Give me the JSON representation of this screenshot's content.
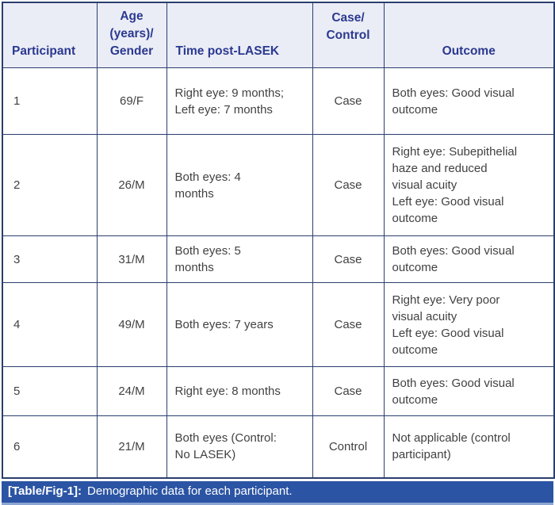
{
  "table": {
    "headers": {
      "participant": "Participant",
      "age_gender": "Age\n(years)/\nGender",
      "time_post_lasek": "Time post-LASEK",
      "case_control": "Case/\nControl",
      "outcome": "Outcome"
    },
    "rows": [
      {
        "participant": "1",
        "age_gender": "69/F",
        "time_post_lasek": "Right eye: 9 months;\nLeft eye: 7 months",
        "case_control": "Case",
        "outcome": "Both eyes: Good visual\noutcome"
      },
      {
        "participant": "2",
        "age_gender": "26/M",
        "time_post_lasek": "Both eyes: 4\nmonths",
        "case_control": "Case",
        "outcome": "Right eye: Subepithelial\nhaze and reduced\nvisual acuity\nLeft eye: Good visual\noutcome"
      },
      {
        "participant": "3",
        "age_gender": "31/M",
        "time_post_lasek": "Both eyes: 5\nmonths",
        "case_control": "Case",
        "outcome": "Both eyes: Good visual\noutcome"
      },
      {
        "participant": "4",
        "age_gender": "49/M",
        "time_post_lasek": "Both eyes: 7 years",
        "case_control": "Case",
        "outcome": "Right eye: Very poor\nvisual acuity\nLeft eye: Good visual\noutcome"
      },
      {
        "participant": "5",
        "age_gender": "24/M",
        "time_post_lasek": "Right eye: 8 months",
        "case_control": "Case",
        "outcome": "Both eyes: Good visual\noutcome"
      },
      {
        "participant": "6",
        "age_gender": "21/M",
        "time_post_lasek": "Both eyes (Control:\nNo LASEK)",
        "case_control": "Control",
        "outcome": "Not applicable (control\nparticipant)"
      }
    ]
  },
  "caption": {
    "label": "[Table/Fig-1]:",
    "text": "Demographic data for each participant."
  },
  "colors": {
    "border": "#2a3e6e",
    "header_bg": "#ebedf6",
    "header_text": "#2b3990",
    "body_text": "#414141",
    "caption_bg": "#2b54a4",
    "caption_strip": "#8ca5d3"
  }
}
